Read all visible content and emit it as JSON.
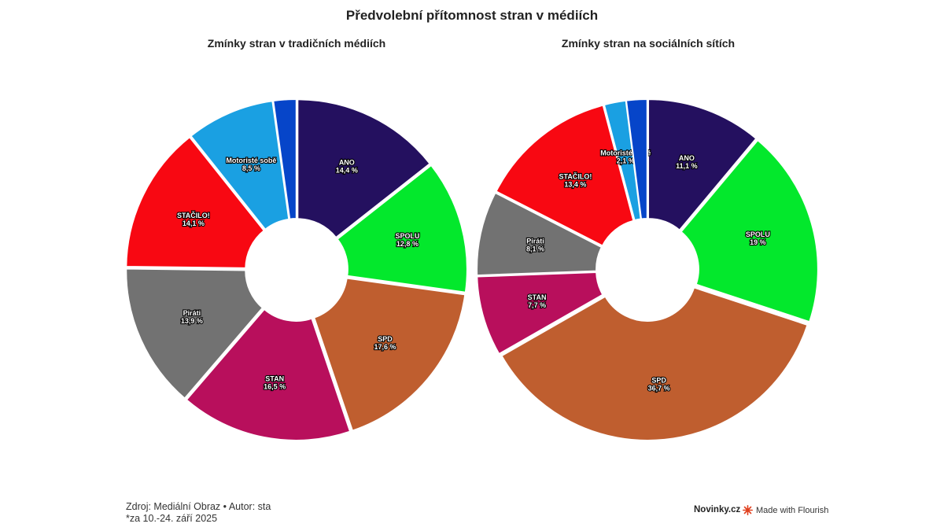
{
  "title": "Předvolební přítomnost stran v médiích",
  "footer": {
    "source": "Zdroj: Mediální Obraz • Autor: sta",
    "note": "*za 10.-24. září 2025",
    "brand": "Novinky.cz",
    "flourish": "Made with Flourish"
  },
  "chart_data": [
    {
      "type": "pie",
      "donut": true,
      "title": "Zmínky stran v tradičních médiích",
      "unit": "%",
      "slices": [
        {
          "name": "ANO",
          "value": 14.4,
          "label": "14,4 %",
          "color": "#24105f"
        },
        {
          "name": "SPOLU",
          "value": 12.8,
          "label": "12,8 %",
          "color": "#03e82c"
        },
        {
          "name": "SPD",
          "value": 17.6,
          "label": "17,6 %",
          "color": "#bf5e2f"
        },
        {
          "name": "STAN",
          "value": 16.5,
          "label": "16,5 %",
          "color": "#b80f5c"
        },
        {
          "name": "Piráti",
          "value": 13.9,
          "label": "13,9 %",
          "color": "#727272"
        },
        {
          "name": "STAČILO!",
          "value": 14.1,
          "label": "14,1 %",
          "color": "#f80812"
        },
        {
          "name": "Motoristé sobě",
          "value": 8.5,
          "label": "8,5 %",
          "color": "#1aa0e2"
        },
        {
          "name": "",
          "value": 2.2,
          "label": "",
          "color": "#0645c9"
        }
      ]
    },
    {
      "type": "pie",
      "donut": true,
      "title": "Zmínky stran na sociálních sítích",
      "unit": "%",
      "slices": [
        {
          "name": "ANO",
          "value": 11.1,
          "label": "11,1 %",
          "color": "#24105f"
        },
        {
          "name": "SPOLU",
          "value": 19,
          "label": "19 %",
          "color": "#03e82c"
        },
        {
          "name": "SPD",
          "value": 36.7,
          "label": "36,7 %",
          "color": "#bf5e2f"
        },
        {
          "name": "STAN",
          "value": 7.7,
          "label": "7,7 %",
          "color": "#b80f5c"
        },
        {
          "name": "Piráti",
          "value": 8.1,
          "label": "8,1 %",
          "color": "#727272"
        },
        {
          "name": "STAČILO!",
          "value": 13.4,
          "label": "13,4 %",
          "color": "#f80812"
        },
        {
          "name": "Motoristé sobě",
          "value": 2.1,
          "label": "2,1 %",
          "color": "#1aa0e2"
        },
        {
          "name": "",
          "value": 2.0,
          "label": "",
          "color": "#0645c9"
        }
      ]
    }
  ]
}
